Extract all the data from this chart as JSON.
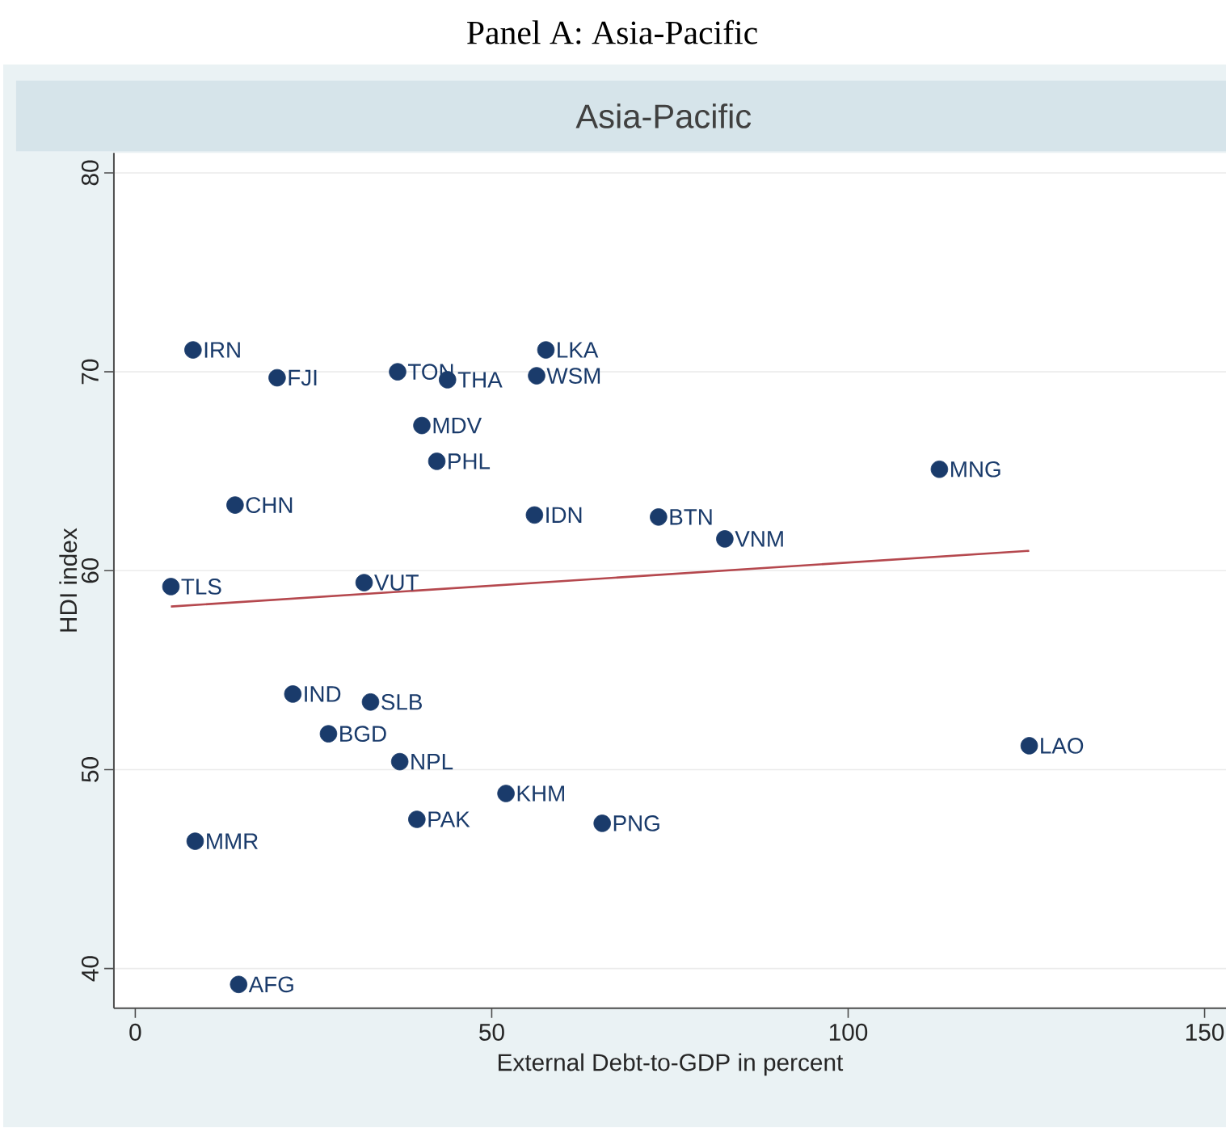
{
  "chart_data": {
    "type": "scatter",
    "title": "Panel A: Asia-Pacific",
    "subtitle": "Asia-Pacific",
    "xlabel": "External Debt-to-GDP in percent",
    "ylabel": "HDI index",
    "xlim": [
      -3,
      153
    ],
    "ylim": [
      38,
      81
    ],
    "xticks": [
      0,
      50,
      100,
      150
    ],
    "yticks": [
      40,
      50,
      60,
      70,
      80
    ],
    "grid": "y",
    "series": [
      {
        "marker": "circle",
        "color": "#1a3b6b",
        "x": [
          8.1,
          19.9,
          36.8,
          43.8,
          57.6,
          56.3,
          40.2,
          42.3,
          14,
          56,
          73.4,
          82.7,
          112.8,
          5,
          32.1,
          22.1,
          33,
          27.1,
          37.1,
          52,
          39.5,
          65.5,
          8.4,
          14.5,
          125.4
        ],
        "values": [
          71.1,
          69.7,
          70.0,
          69.6,
          71.1,
          69.8,
          67.3,
          65.5,
          63.3,
          62.8,
          62.7,
          61.6,
          65.1,
          59.2,
          59.4,
          53.8,
          53.4,
          51.8,
          50.4,
          48.8,
          47.5,
          47.3,
          46.4,
          39.2,
          51.2
        ]
      },
      {
        "type": "line",
        "color": "#b5484e",
        "x": [
          5,
          125.4
        ],
        "values": [
          58.2,
          61.0
        ]
      }
    ],
    "annotations": [
      {
        "text": "IRN",
        "x": 8.1,
        "y": 71.1
      },
      {
        "text": "FJI",
        "x": 19.9,
        "y": 69.7
      },
      {
        "text": "TON",
        "x": 36.8,
        "y": 70.0
      },
      {
        "text": "THA",
        "x": 43.8,
        "y": 69.6
      },
      {
        "text": "LKA",
        "x": 57.6,
        "y": 71.1
      },
      {
        "text": "WSM",
        "x": 56.3,
        "y": 69.8
      },
      {
        "text": "MDV",
        "x": 40.2,
        "y": 67.3
      },
      {
        "text": "PHL",
        "x": 42.3,
        "y": 65.5
      },
      {
        "text": "CHN",
        "x": 14,
        "y": 63.3
      },
      {
        "text": "IDN",
        "x": 56,
        "y": 62.8
      },
      {
        "text": "BTN",
        "x": 73.4,
        "y": 62.7
      },
      {
        "text": "VNM",
        "x": 82.7,
        "y": 61.6
      },
      {
        "text": "MNG",
        "x": 112.8,
        "y": 65.1
      },
      {
        "text": "TLS",
        "x": 5,
        "y": 59.2
      },
      {
        "text": "VUT",
        "x": 32.1,
        "y": 59.4
      },
      {
        "text": "IND",
        "x": 22.1,
        "y": 53.8
      },
      {
        "text": "SLB",
        "x": 33,
        "y": 53.4
      },
      {
        "text": "BGD",
        "x": 27.1,
        "y": 51.8
      },
      {
        "text": "NPL",
        "x": 37.1,
        "y": 50.4
      },
      {
        "text": "KHM",
        "x": 52,
        "y": 48.8
      },
      {
        "text": "PAK",
        "x": 39.5,
        "y": 47.5
      },
      {
        "text": "PNG",
        "x": 65.5,
        "y": 47.3
      },
      {
        "text": "MMR",
        "x": 8.4,
        "y": 46.4
      },
      {
        "text": "AFG",
        "x": 14.5,
        "y": 39.2
      },
      {
        "text": "LAO",
        "x": 125.4,
        "y": 51.2
      }
    ]
  }
}
